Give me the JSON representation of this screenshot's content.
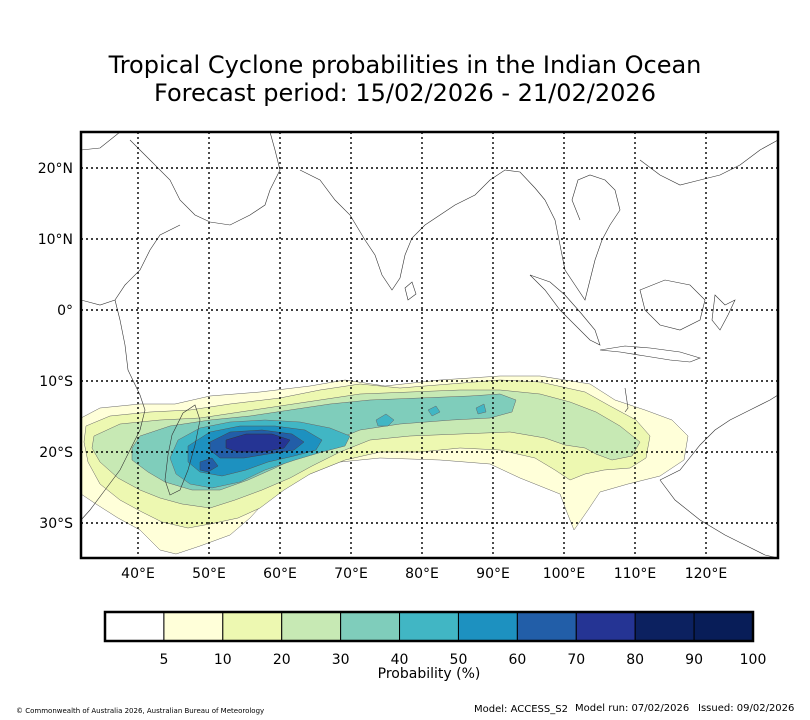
{
  "title": {
    "line1": "Tropical Cyclone probabilities in the Indian Ocean",
    "line2": "Forecast period: 15/02/2026 - 21/02/2026"
  },
  "axes": {
    "lat_labels": [
      "20°N",
      "10°N",
      "0°",
      "10°S",
      "20°S",
      "30°S"
    ],
    "lon_labels": [
      "40°E",
      "50°E",
      "60°E",
      "70°E",
      "80°E",
      "90°E",
      "100°E",
      "110°E",
      "120°E"
    ]
  },
  "colorbar": {
    "label": "Probability (%)",
    "ticks": [
      "5",
      "10",
      "20",
      "30",
      "40",
      "50",
      "60",
      "70",
      "80",
      "90",
      "100"
    ],
    "colors": [
      "#ffffff",
      "#ffffd9",
      "#edf8b1",
      "#c7e9b4",
      "#7fcdbb",
      "#41b6c4",
      "#1d91c0",
      "#225ea8",
      "#253494",
      "#0c2160",
      "#081d58"
    ]
  },
  "footer": {
    "copyright": "© Commonwealth of Australia 2026, Australian Bureau of Meteorology",
    "model": "Model: ACCESS_S2",
    "model_run": "Model run: 07/02/2026",
    "issued": "Issued: 09/02/2026"
  }
}
